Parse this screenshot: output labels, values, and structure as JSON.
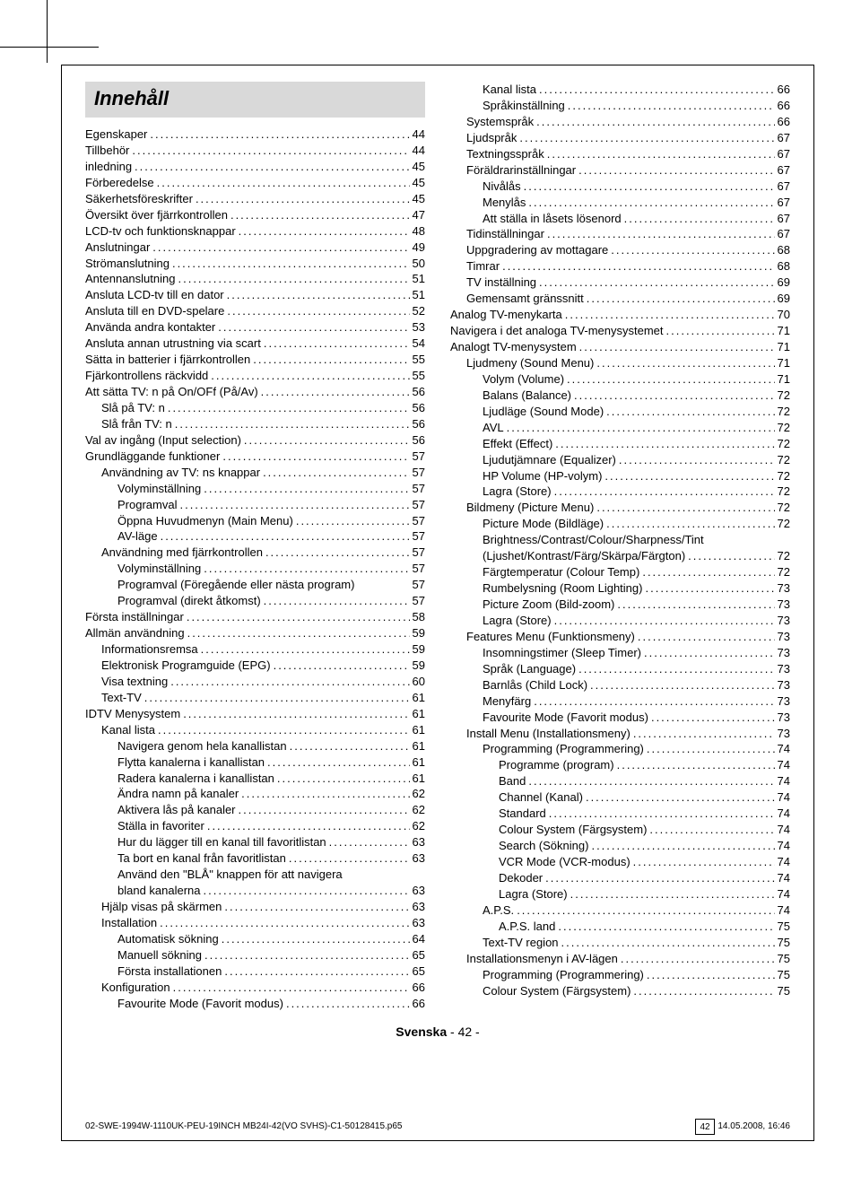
{
  "section_title": "Innehåll",
  "left_entries": [
    {
      "label": "Egenskaper",
      "page": "44",
      "indent": 0
    },
    {
      "label": "Tillbehör",
      "page": "44",
      "indent": 0
    },
    {
      "label": "inledning",
      "page": "45",
      "indent": 0
    },
    {
      "label": "Förberedelse",
      "page": "45",
      "indent": 0
    },
    {
      "label": "Säkerhetsföreskrifter",
      "page": "45",
      "indent": 0
    },
    {
      "label": "Översikt över fjärrkontrollen",
      "page": "47",
      "indent": 0
    },
    {
      "label": "LCD-tv och funktionsknappar",
      "page": "48",
      "indent": 0
    },
    {
      "label": "Anslutningar",
      "page": "49",
      "indent": 0
    },
    {
      "label": "Strömanslutning",
      "page": "50",
      "indent": 0
    },
    {
      "label": "Antennanslutning",
      "page": "51",
      "indent": 0
    },
    {
      "label": "Ansluta LCD-tv till en dator",
      "page": "51",
      "indent": 0
    },
    {
      "label": "Ansluta till en DVD-spelare",
      "page": "52",
      "indent": 0
    },
    {
      "label": "Använda andra kontakter",
      "page": "53",
      "indent": 0
    },
    {
      "label": "Ansluta annan utrustning via scart",
      "page": "54",
      "indent": 0
    },
    {
      "label": "Sätta in batterier i fjärrkontrollen",
      "page": "55",
      "indent": 0
    },
    {
      "label": "Fjärkontrollens räckvidd",
      "page": "55",
      "indent": 0
    },
    {
      "label": "Att sätta TV: n på On/OFf (På/Av)",
      "page": "56",
      "indent": 0
    },
    {
      "label": "Slå på TV: n",
      "page": "56",
      "indent": 1
    },
    {
      "label": "Slå från TV: n",
      "page": "56",
      "indent": 1
    },
    {
      "label": "Val av ingång (Input selection)",
      "page": "56",
      "indent": 0
    },
    {
      "label": "Grundläggande funktioner",
      "page": "57",
      "indent": 0
    },
    {
      "label": "Användning av TV: ns knappar",
      "page": "57",
      "indent": 1
    },
    {
      "label": "Volyminställning",
      "page": "57",
      "indent": 2
    },
    {
      "label": "Programval",
      "page": "57",
      "indent": 2
    },
    {
      "label": "Öppna Huvudmenyn (Main Menu)",
      "page": "57",
      "indent": 2
    },
    {
      "label": "AV-läge",
      "page": "57",
      "indent": 2
    },
    {
      "label": "Användning med fjärrkontrollen",
      "page": "57",
      "indent": 1
    },
    {
      "label": "Volyminställning",
      "page": "57",
      "indent": 2
    },
    {
      "label": "Programval (Föregående eller nästa program)",
      "page": "57",
      "indent": 2,
      "nodots": true
    },
    {
      "label": "Programval (direkt åtkomst)",
      "page": "57",
      "indent": 2
    },
    {
      "label": "Första inställningar",
      "page": "58",
      "indent": 0
    },
    {
      "label": "Allmän användning",
      "page": "59",
      "indent": 0
    },
    {
      "label": "Informationsremsa",
      "page": "59",
      "indent": 1
    },
    {
      "label": "Elektronisk Programguide (EPG)",
      "page": "59",
      "indent": 1
    },
    {
      "label": "Visa textning",
      "page": "60",
      "indent": 1
    },
    {
      "label": "Text-TV",
      "page": "61",
      "indent": 1
    },
    {
      "label": "IDTV Menysystem",
      "page": "61",
      "indent": 0
    },
    {
      "label": "Kanal lista",
      "page": "61",
      "indent": 1
    },
    {
      "label": "Navigera genom hela kanallistan",
      "page": "61",
      "indent": 2
    },
    {
      "label": "Flytta kanalerna i kanallistan",
      "page": "61",
      "indent": 2
    },
    {
      "label": "Radera kanalerna i kanallistan",
      "page": "61",
      "indent": 2
    },
    {
      "label": "Ändra namn på kanaler",
      "page": "62",
      "indent": 2
    },
    {
      "label": "Aktivera lås på kanaler",
      "page": "62",
      "indent": 2
    },
    {
      "label": "Ställa in favoriter",
      "page": "62",
      "indent": 2
    },
    {
      "label": "Hur du lägger till en kanal till favoritlistan",
      "page": "63",
      "indent": 2
    },
    {
      "label": "Ta bort en kanal från favoritlistan",
      "page": "63",
      "indent": 2
    },
    {
      "label": "Använd den \"BLÅ\" knappen för att navigera",
      "page": "",
      "indent": 2,
      "nodots": true
    },
    {
      "label": "bland kanalerna",
      "page": "63",
      "indent": 2
    },
    {
      "label": "Hjälp visas på skärmen",
      "page": "63",
      "indent": 1
    },
    {
      "label": "Installation",
      "page": "63",
      "indent": 1
    },
    {
      "label": "Automatisk sökning",
      "page": "64",
      "indent": 2
    },
    {
      "label": "Manuell sökning",
      "page": "65",
      "indent": 2
    },
    {
      "label": "Första installationen",
      "page": "65",
      "indent": 2
    },
    {
      "label": "Konfiguration",
      "page": "66",
      "indent": 1
    },
    {
      "label": "Favourite Mode (Favorit modus)",
      "page": "66",
      "indent": 2
    }
  ],
  "right_entries": [
    {
      "label": "Kanal lista",
      "page": "66",
      "indent": 2
    },
    {
      "label": "Språkinställning",
      "page": "66",
      "indent": 2
    },
    {
      "label": "Systemspråk",
      "page": "66",
      "indent": 1
    },
    {
      "label": "Ljudspråk",
      "page": "67",
      "indent": 1
    },
    {
      "label": "Textningsspråk",
      "page": "67",
      "indent": 1
    },
    {
      "label": "Föräldrarinställningar",
      "page": "67",
      "indent": 1
    },
    {
      "label": "Nivålås",
      "page": "67",
      "indent": 2
    },
    {
      "label": "Menylås",
      "page": "67",
      "indent": 2
    },
    {
      "label": "Att ställa in låsets lösenord",
      "page": "67",
      "indent": 2
    },
    {
      "label": "Tidinställningar",
      "page": "67",
      "indent": 1
    },
    {
      "label": "Uppgradering av mottagare",
      "page": "68",
      "indent": 1
    },
    {
      "label": "Timrar",
      "page": "68",
      "indent": 1
    },
    {
      "label": "TV inställning",
      "page": "69",
      "indent": 1
    },
    {
      "label": "Gemensamt gränssnitt",
      "page": "69",
      "indent": 1
    },
    {
      "label": "Analog TV-menykarta",
      "page": "70",
      "indent": 0
    },
    {
      "label": "Navigera i det analoga TV-menysystemet",
      "page": "71",
      "indent": 0
    },
    {
      "label": "Analogt TV-menysystem",
      "page": "71",
      "indent": 0
    },
    {
      "label": "Ljudmeny (Sound Menu)",
      "page": "71",
      "indent": 1
    },
    {
      "label": "Volym (Volume)",
      "page": "71",
      "indent": 2
    },
    {
      "label": "Balans (Balance)",
      "page": "72",
      "indent": 2
    },
    {
      "label": "Ljudläge (Sound Mode)",
      "page": "72",
      "indent": 2
    },
    {
      "label": "AVL",
      "page": "72",
      "indent": 2
    },
    {
      "label": "Effekt (Effect)",
      "page": "72",
      "indent": 2
    },
    {
      "label": "Ljudutjämnare (Equalizer)",
      "page": "72",
      "indent": 2
    },
    {
      "label": "HP Volume (HP-volym)",
      "page": "72",
      "indent": 2
    },
    {
      "label": "Lagra (Store)",
      "page": "72",
      "indent": 2
    },
    {
      "label": "Bildmeny (Picture Menu)",
      "page": "72",
      "indent": 1
    },
    {
      "label": "Picture Mode (Bildläge)",
      "page": "72",
      "indent": 2
    },
    {
      "label": "Brightness/Contrast/Colour/Sharpness/Tint",
      "page": "",
      "indent": 2,
      "nodots": true
    },
    {
      "label": "(Ljushet/Kontrast/Färg/Skärpa/Färgton)",
      "page": "72",
      "indent": 2
    },
    {
      "label": "Färgtemperatur (Colour Temp)",
      "page": "72",
      "indent": 2
    },
    {
      "label": "Rumbelysning (Room Lighting)",
      "page": "73",
      "indent": 2
    },
    {
      "label": "Picture Zoom (Bild-zoom)",
      "page": "73",
      "indent": 2
    },
    {
      "label": "Lagra (Store)",
      "page": "73",
      "indent": 2
    },
    {
      "label": "Features Menu (Funktionsmeny)",
      "page": "73",
      "indent": 1
    },
    {
      "label": "Insomningstimer (Sleep Timer)",
      "page": "73",
      "indent": 2
    },
    {
      "label": "Språk (Language)",
      "page": "73",
      "indent": 2
    },
    {
      "label": "Barnlås (Child Lock)",
      "page": "73",
      "indent": 2
    },
    {
      "label": "Menyfärg",
      "page": "73",
      "indent": 2
    },
    {
      "label": "Favourite Mode (Favorit modus)",
      "page": "73",
      "indent": 2
    },
    {
      "label": "Install Menu (Installationsmeny)",
      "page": "73",
      "indent": 1
    },
    {
      "label": "Programming (Programmering)",
      "page": "74",
      "indent": 2
    },
    {
      "label": "Programme (program)",
      "page": "74",
      "indent": 3
    },
    {
      "label": "Band",
      "page": "74",
      "indent": 3
    },
    {
      "label": "Channel (Kanal)",
      "page": "74",
      "indent": 3
    },
    {
      "label": "Standard",
      "page": "74",
      "indent": 3
    },
    {
      "label": "Colour System (Färgsystem)",
      "page": "74",
      "indent": 3
    },
    {
      "label": "Search (Sökning)",
      "page": "74",
      "indent": 3
    },
    {
      "label": "VCR Mode (VCR-modus)",
      "page": "74",
      "indent": 3
    },
    {
      "label": "Dekoder",
      "page": "74",
      "indent": 3
    },
    {
      "label": "Lagra (Store)",
      "page": "74",
      "indent": 3
    },
    {
      "label": "A.P.S.",
      "page": "74",
      "indent": 2
    },
    {
      "label": "A.P.S. land",
      "page": "75",
      "indent": 3
    },
    {
      "label": "Text-TV region",
      "page": "75",
      "indent": 2
    },
    {
      "label": "Installationsmenyn i AV-lägen",
      "page": "75",
      "indent": 1
    },
    {
      "label": "Programming (Programmering)",
      "page": "75",
      "indent": 2
    },
    {
      "label": "Colour System (Färgsystem)",
      "page": "75",
      "indent": 2
    }
  ],
  "footer": {
    "lang": "Svenska",
    "sep": " - ",
    "page": "42",
    "trail": " -"
  },
  "meta": {
    "file": "02-SWE-1994W-1110UK-PEU-19INCH MB24I-42(VO SVHS)-C1-50128415.p65",
    "date": "14.05.2008, 16:46",
    "pgnum": "42"
  }
}
